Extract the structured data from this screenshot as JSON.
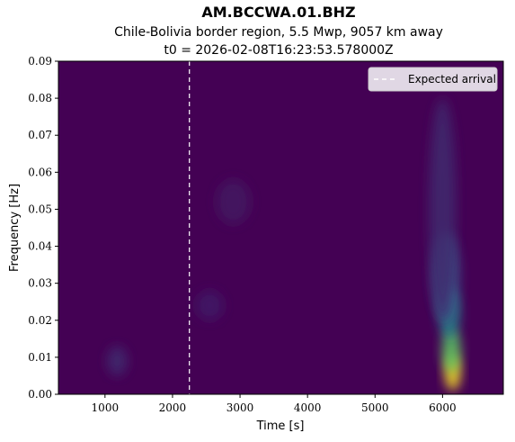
{
  "chart_data": {
    "type": "heatmap",
    "title": "AM.BCCWA.01.BHZ",
    "subtitle_lines": [
      "Chile-Bolivia border region, 5.5 Mwp, 9057 km away",
      "t0 = 2026-02-08T16:23:53.578000Z"
    ],
    "xlabel": "Time [s]",
    "ylabel": "Frequency [Hz]",
    "xlim": [
      310,
      6900
    ],
    "ylim": [
      0,
      0.09
    ],
    "xticks": [
      1000,
      2000,
      3000,
      4000,
      5000,
      6000
    ],
    "xtick_labels": [
      "1000",
      "2000",
      "3000",
      "4000",
      "5000",
      "6000"
    ],
    "yticks": [
      0,
      0.01,
      0.02,
      0.03,
      0.04,
      0.05,
      0.06,
      0.07,
      0.08,
      0.09
    ],
    "ytick_labels": [
      "0.00",
      "0.01",
      "0.02",
      "0.03",
      "0.04",
      "0.05",
      "0.06",
      "0.07",
      "0.08",
      "0.09"
    ],
    "colormap": "viridis",
    "expected_arrival_time": 2250,
    "legend": {
      "label": "Expected arrival",
      "placement": "top-right"
    },
    "energy_blobs": [
      {
        "t": 6150,
        "f": 0.006,
        "dt": 120,
        "df": 0.005,
        "amp": 1.0
      },
      {
        "t": 6130,
        "f": 0.012,
        "dt": 140,
        "df": 0.006,
        "amp": 0.75
      },
      {
        "t": 6100,
        "f": 0.022,
        "dt": 160,
        "df": 0.007,
        "amp": 0.45
      },
      {
        "t": 6050,
        "f": 0.032,
        "dt": 200,
        "df": 0.012,
        "amp": 0.28
      },
      {
        "t": 6000,
        "f": 0.05,
        "dt": 200,
        "df": 0.03,
        "amp": 0.12
      },
      {
        "t": 1180,
        "f": 0.009,
        "dt": 150,
        "df": 0.004,
        "amp": 0.12
      },
      {
        "t": 2550,
        "f": 0.024,
        "dt": 200,
        "df": 0.004,
        "amp": 0.08
      },
      {
        "t": 2900,
        "f": 0.052,
        "dt": 250,
        "df": 0.006,
        "amp": 0.06
      }
    ]
  },
  "colors": {
    "background": "#440154",
    "arrival_line": "#ffffff",
    "legend_bg": "#f2eef4",
    "legend_border": "#cccccc"
  }
}
